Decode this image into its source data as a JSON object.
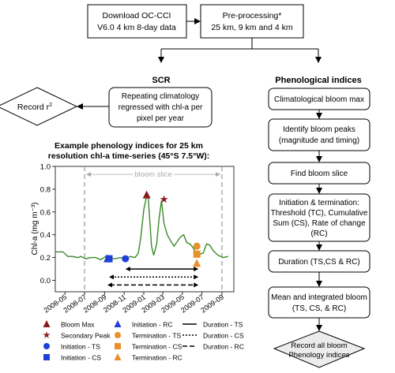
{
  "boxes": {
    "download": [
      "Download OC-CCI",
      "V6.0 4 km 8-day data"
    ],
    "preprocess": [
      "Pre-processing*",
      "25 km, 9 km and 4 km"
    ],
    "scr_title": "SCR",
    "scr_box": [
      "Repeating climatology",
      "regressed with chl-a per",
      "pixel per year"
    ],
    "record_r2": "Record r",
    "record_r2_sup": "2",
    "pheno_title": "Phenological indices",
    "clim_max": "Climatological bloom max",
    "identify": [
      "Identify bloom peaks",
      "(magnitude and timing)"
    ],
    "find_slice": "Find bloom slice",
    "init_term": [
      "Initiation  &  termination:",
      "Threshold (TC), Cumulative",
      "Sum (CS), Rate of change",
      "(RC)"
    ],
    "duration": "Duration (TS,CS & RC)",
    "mean_int": [
      "Mean and integrated bloom",
      "(TS, CS, & RC)"
    ],
    "record_all": [
      "Record all bloom",
      "Phenology indices"
    ]
  },
  "chart_data": {
    "type": "line",
    "title": [
      "Example phenology indices for 25 km",
      "resolution chl-a time-series (45°S 7.5°W):"
    ],
    "ylabel": "Chl-a (mg m⁻³)",
    "ylim": [
      -0.1,
      1.0
    ],
    "yticks": [
      "0.0",
      "0.2",
      "0.4",
      "0.6",
      "0.8",
      "1.0"
    ],
    "ytick_values": [
      0.0,
      0.2,
      0.4,
      0.6,
      0.8,
      1.0
    ],
    "xlim": [
      "2008-04-01",
      "2009-10-08"
    ],
    "xticks": [
      "2008-05",
      "2008-07",
      "2008-09",
      "2008-11",
      "2009-01",
      "2009-03",
      "2009-05",
      "2009-07",
      "2009-09"
    ],
    "xtick_dates": [
      "2008-05-01",
      "2008-07-01",
      "2008-09-01",
      "2008-11-01",
      "2009-01-01",
      "2009-03-01",
      "2009-05-01",
      "2009-07-01",
      "2009-09-01"
    ],
    "bloom_slice_label": "bloom slice",
    "bloom_slice": [
      "2008-07-01",
      "2009-09-01"
    ],
    "line_color": "#3a8a2a",
    "series": [
      {
        "x": [
          "2008-04-01",
          "2008-04-25",
          "2008-05-10",
          "2008-05-25",
          "2008-06-10",
          "2008-06-20",
          "2008-07-05",
          "2008-07-20",
          "2008-08-05",
          "2008-08-20",
          "2008-09-05",
          "2008-09-20",
          "2008-10-05",
          "2008-10-20",
          "2008-11-05",
          "2008-11-20",
          "2008-12-05",
          "2008-12-15",
          "2008-12-23",
          "2009-01-01",
          "2009-01-10",
          "2009-01-15",
          "2009-01-25",
          "2009-02-01",
          "2009-02-10",
          "2009-02-18",
          "2009-02-25",
          "2009-03-05",
          "2009-03-15",
          "2009-03-25",
          "2009-04-05",
          "2009-04-15",
          "2009-04-25",
          "2009-05-05",
          "2009-05-15",
          "2009-05-25",
          "2009-06-05",
          "2009-06-15",
          "2009-06-25",
          "2009-07-05",
          "2009-07-15",
          "2009-07-25",
          "2009-08-05",
          "2009-08-20",
          "2009-09-05",
          "2009-09-20"
        ],
        "y": [
          0.25,
          0.25,
          0.21,
          0.21,
          0.2,
          0.21,
          0.19,
          0.2,
          0.2,
          0.18,
          0.21,
          0.19,
          0.19,
          0.2,
          0.19,
          0.21,
          0.2,
          0.24,
          0.38,
          0.62,
          0.74,
          0.72,
          0.3,
          0.22,
          0.32,
          0.55,
          0.7,
          0.5,
          0.4,
          0.35,
          0.3,
          0.34,
          0.38,
          0.4,
          0.33,
          0.32,
          0.28,
          0.22,
          0.23,
          0.24,
          0.32,
          0.31,
          0.26,
          0.22,
          0.2,
          0.21
        ]
      }
    ],
    "markers": [
      {
        "name": "Bloom Max",
        "date": "2009-01-10",
        "value": 0.75,
        "shape": "triangle",
        "color": "#8b1a1a"
      },
      {
        "name": "Secondary Peak",
        "date": "2009-03-05",
        "value": 0.71,
        "shape": "star",
        "color": "#8b1a1a"
      },
      {
        "name": "Initiation - TS",
        "date": "2008-11-05",
        "value": 0.19,
        "shape": "circle",
        "color": "#1f3fd8"
      },
      {
        "name": "Initiation - CS",
        "date": "2008-09-15",
        "value": 0.19,
        "shape": "square",
        "color": "#1f3fd8"
      },
      {
        "name": "Initiation - RC",
        "date": "2008-09-10",
        "value": 0.19,
        "shape": "triangle",
        "color": "#1f3fd8"
      },
      {
        "name": "Termination - TS",
        "date": "2009-06-15",
        "value": 0.3,
        "shape": "circle",
        "color": "#e8902a"
      },
      {
        "name": "Termination - CS",
        "date": "2009-06-15",
        "value": 0.23,
        "shape": "square",
        "color": "#e8902a"
      },
      {
        "name": "Termination - RC",
        "date": "2009-06-15",
        "value": 0.15,
        "shape": "triangle",
        "color": "#e8902a"
      }
    ],
    "durations": [
      {
        "name": "Duration - TS",
        "start": "2008-11-05",
        "end": "2009-06-20",
        "value": 0.1,
        "dash": ""
      },
      {
        "name": "Duration - CS",
        "start": "2008-09-15",
        "end": "2009-06-20",
        "value": 0.03,
        "dash": "2,2"
      },
      {
        "name": "Duration - RC",
        "start": "2008-09-10",
        "end": "2009-06-20",
        "value": -0.04,
        "dash": "6,3"
      }
    ],
    "legend": [
      [
        "Bloom Max",
        "Initiation - RC",
        "Duration - TS"
      ],
      [
        "Secondary Peak",
        "Termination - TS",
        "Duration - CS"
      ],
      [
        "Initiation - TS",
        "Termination - CS",
        "Duration - RC"
      ],
      [
        "Initiation - CS",
        "Termination - RC",
        ""
      ]
    ]
  }
}
